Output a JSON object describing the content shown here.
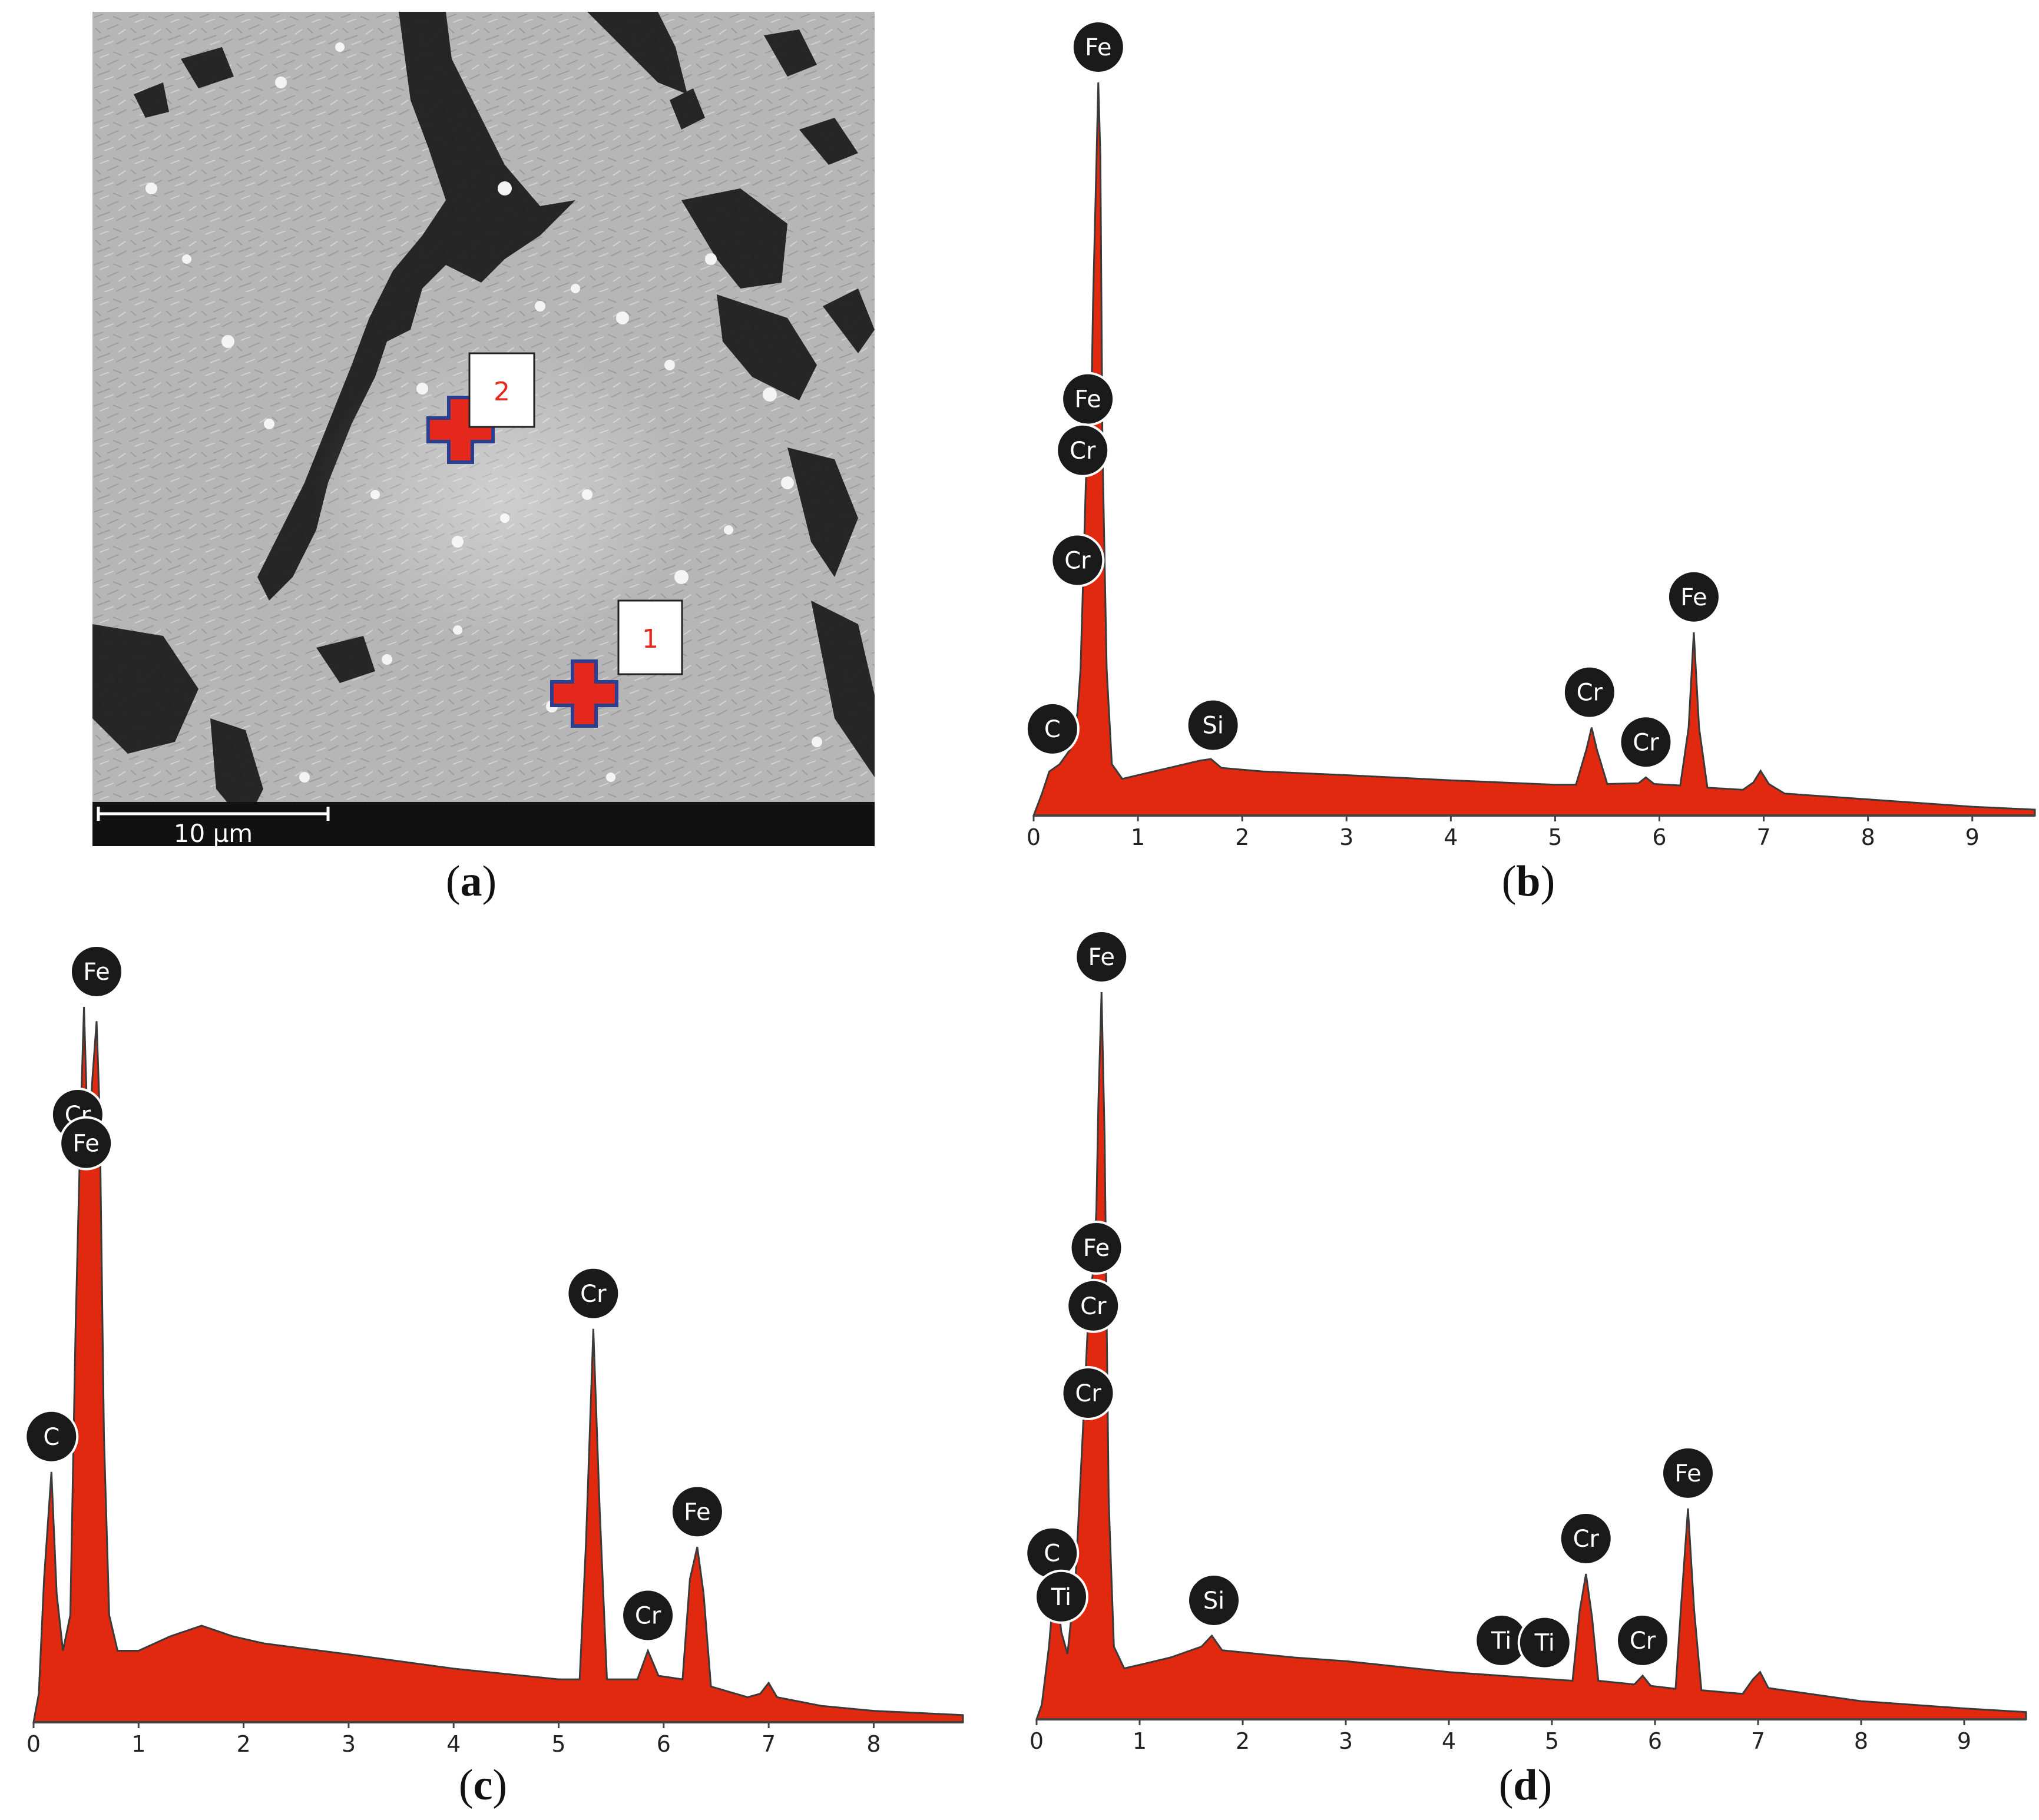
{
  "colors": {
    "fill": "#e0290f",
    "outline": "#3a3a3a",
    "label_bg": "#1a1a1a",
    "label_text": "#ffffff",
    "marker_red": "#e5281c",
    "marker_blue": "#2c3e90"
  },
  "micrograph": {
    "scale_bar_label": "10 µm",
    "markers": [
      {
        "label": "1",
        "icon": "red-plus-icon"
      },
      {
        "label": "2",
        "icon": "red-plus-icon"
      }
    ]
  },
  "captions": {
    "a": "a",
    "b": "b",
    "c": "c",
    "d": "d"
  },
  "chart_data": [
    {
      "panel": "b",
      "type": "area",
      "xlim": [
        0,
        9.6
      ],
      "ylim": [
        0,
        100
      ],
      "x_ticks": [
        "0",
        "1",
        "2",
        "3",
        "4",
        "5",
        "6",
        "7",
        "8",
        "9"
      ],
      "points": [
        [
          0,
          0
        ],
        [
          0.08,
          3
        ],
        [
          0.15,
          6
        ],
        [
          0.25,
          7
        ],
        [
          0.35,
          9
        ],
        [
          0.42,
          14
        ],
        [
          0.45,
          20
        ],
        [
          0.48,
          35
        ],
        [
          0.5,
          45
        ],
        [
          0.52,
          52
        ],
        [
          0.55,
          53
        ],
        [
          0.57,
          70
        ],
        [
          0.6,
          88
        ],
        [
          0.62,
          100
        ],
        [
          0.64,
          90
        ],
        [
          0.66,
          50
        ],
        [
          0.7,
          20
        ],
        [
          0.75,
          7
        ],
        [
          0.85,
          5
        ],
        [
          1.0,
          5.5
        ],
        [
          1.3,
          6.5
        ],
        [
          1.6,
          7.5
        ],
        [
          1.7,
          7.7
        ],
        [
          1.8,
          6.5
        ],
        [
          2.2,
          6
        ],
        [
          3,
          5.5
        ],
        [
          4,
          4.8
        ],
        [
          5,
          4.2
        ],
        [
          5.2,
          4.2
        ],
        [
          5.3,
          9
        ],
        [
          5.35,
          12
        ],
        [
          5.4,
          9
        ],
        [
          5.5,
          4.3
        ],
        [
          5.8,
          4.4
        ],
        [
          5.87,
          5.2
        ],
        [
          5.95,
          4.3
        ],
        [
          6.2,
          4.1
        ],
        [
          6.28,
          12
        ],
        [
          6.33,
          25
        ],
        [
          6.38,
          12
        ],
        [
          6.46,
          3.8
        ],
        [
          6.8,
          3.5
        ],
        [
          6.9,
          4.5
        ],
        [
          6.97,
          6.1
        ],
        [
          7.05,
          4.3
        ],
        [
          7.2,
          3
        ],
        [
          8,
          2.2
        ],
        [
          9,
          1.2
        ],
        [
          9.6,
          0.8
        ]
      ],
      "labels": [
        {
          "text": "Fe",
          "x": 0.62,
          "y": 100
        },
        {
          "text": "Fe",
          "x": 0.52,
          "y": 52
        },
        {
          "text": "Cr",
          "x": 0.47,
          "y": 45
        },
        {
          "text": "Cr",
          "x": 0.42,
          "y": 30
        },
        {
          "text": "C",
          "x": 0.18,
          "y": 7
        },
        {
          "text": "Si",
          "x": 1.72,
          "y": 7.5
        },
        {
          "text": "Cr",
          "x": 5.33,
          "y": 12
        },
        {
          "text": "Cr",
          "x": 5.87,
          "y": 5.2
        },
        {
          "text": "Fe",
          "x": 6.33,
          "y": 25
        }
      ]
    },
    {
      "panel": "c",
      "type": "area",
      "xlim": [
        0,
        8.85
      ],
      "ylim": [
        0,
        100
      ],
      "x_ticks": [
        "0",
        "1",
        "2",
        "3",
        "4",
        "5",
        "6",
        "7",
        "8"
      ],
      "points": [
        [
          0,
          0
        ],
        [
          0.05,
          4
        ],
        [
          0.1,
          20
        ],
        [
          0.17,
          35
        ],
        [
          0.22,
          18
        ],
        [
          0.28,
          10
        ],
        [
          0.35,
          15
        ],
        [
          0.4,
          55
        ],
        [
          0.45,
          85
        ],
        [
          0.48,
          100
        ],
        [
          0.52,
          80
        ],
        [
          0.56,
          90
        ],
        [
          0.6,
          98
        ],
        [
          0.63,
          85
        ],
        [
          0.67,
          40
        ],
        [
          0.72,
          15
        ],
        [
          0.8,
          10
        ],
        [
          1.0,
          10
        ],
        [
          1.3,
          12
        ],
        [
          1.6,
          13.5
        ],
        [
          1.9,
          12
        ],
        [
          2.2,
          11
        ],
        [
          3,
          9.5
        ],
        [
          4,
          7.5
        ],
        [
          5,
          6
        ],
        [
          5.2,
          6
        ],
        [
          5.26,
          25
        ],
        [
          5.33,
          55
        ],
        [
          5.39,
          30
        ],
        [
          5.46,
          6
        ],
        [
          5.75,
          6
        ],
        [
          5.85,
          10
        ],
        [
          5.95,
          6.5
        ],
        [
          6.18,
          6
        ],
        [
          6.25,
          20
        ],
        [
          6.32,
          24.5
        ],
        [
          6.38,
          18
        ],
        [
          6.45,
          5
        ],
        [
          6.8,
          3.5
        ],
        [
          6.92,
          4
        ],
        [
          7.0,
          5.5
        ],
        [
          7.08,
          3.5
        ],
        [
          7.5,
          2.3
        ],
        [
          8.0,
          1.6
        ],
        [
          8.85,
          1
        ]
      ],
      "labels": [
        {
          "text": "Fe",
          "x": 0.6,
          "y": 100
        },
        {
          "text": "Cr",
          "x": 0.42,
          "y": 80
        },
        {
          "text": "Fe",
          "x": 0.5,
          "y": 76
        },
        {
          "text": "C",
          "x": 0.17,
          "y": 35
        },
        {
          "text": "Cr",
          "x": 5.33,
          "y": 55
        },
        {
          "text": "Cr",
          "x": 5.85,
          "y": 10
        },
        {
          "text": "Fe",
          "x": 6.32,
          "y": 24.5
        }
      ]
    },
    {
      "panel": "d",
      "type": "area",
      "xlim": [
        0,
        9.6
      ],
      "ylim": [
        0,
        100
      ],
      "x_ticks": [
        "0",
        "1",
        "2",
        "3",
        "4",
        "5",
        "6",
        "7",
        "8",
        "9"
      ],
      "points": [
        [
          0,
          0
        ],
        [
          0.05,
          2
        ],
        [
          0.12,
          10
        ],
        [
          0.18,
          20
        ],
        [
          0.24,
          12
        ],
        [
          0.3,
          9
        ],
        [
          0.38,
          20
        ],
        [
          0.45,
          40
        ],
        [
          0.5,
          55
        ],
        [
          0.55,
          62
        ],
        [
          0.58,
          70
        ],
        [
          0.6,
          85
        ],
        [
          0.63,
          100
        ],
        [
          0.66,
          80
        ],
        [
          0.7,
          30
        ],
        [
          0.75,
          10
        ],
        [
          0.85,
          7
        ],
        [
          1.0,
          7.5
        ],
        [
          1.3,
          8.5
        ],
        [
          1.6,
          10
        ],
        [
          1.7,
          11.5
        ],
        [
          1.8,
          9.5
        ],
        [
          2.5,
          8.5
        ],
        [
          3,
          8
        ],
        [
          4,
          6.5
        ],
        [
          5,
          5.5
        ],
        [
          5.2,
          5.3
        ],
        [
          5.27,
          15
        ],
        [
          5.33,
          20
        ],
        [
          5.39,
          14
        ],
        [
          5.45,
          5.3
        ],
        [
          5.8,
          4.8
        ],
        [
          5.88,
          6
        ],
        [
          5.96,
          4.6
        ],
        [
          6.2,
          4.2
        ],
        [
          6.25,
          15
        ],
        [
          6.32,
          29
        ],
        [
          6.38,
          15
        ],
        [
          6.45,
          4
        ],
        [
          6.85,
          3.5
        ],
        [
          6.95,
          5.5
        ],
        [
          7.02,
          6.5
        ],
        [
          7.1,
          4.3
        ],
        [
          8,
          2.5
        ],
        [
          9,
          1.5
        ],
        [
          9.6,
          1
        ]
      ],
      "labels": [
        {
          "text": "Fe",
          "x": 0.63,
          "y": 100
        },
        {
          "text": "Fe",
          "x": 0.58,
          "y": 60
        },
        {
          "text": "Cr",
          "x": 0.55,
          "y": 52
        },
        {
          "text": "Cr",
          "x": 0.5,
          "y": 40
        },
        {
          "text": "C",
          "x": 0.15,
          "y": 18
        },
        {
          "text": "Ti",
          "x": 0.24,
          "y": 12
        },
        {
          "text": "Si",
          "x": 1.72,
          "y": 11.5
        },
        {
          "text": "Ti",
          "x": 4.51,
          "y": 6
        },
        {
          "text": "Ti",
          "x": 4.93,
          "y": 5.7
        },
        {
          "text": "Cr",
          "x": 5.33,
          "y": 20
        },
        {
          "text": "Cr",
          "x": 5.88,
          "y": 6
        },
        {
          "text": "Fe",
          "x": 6.32,
          "y": 29
        }
      ]
    }
  ]
}
